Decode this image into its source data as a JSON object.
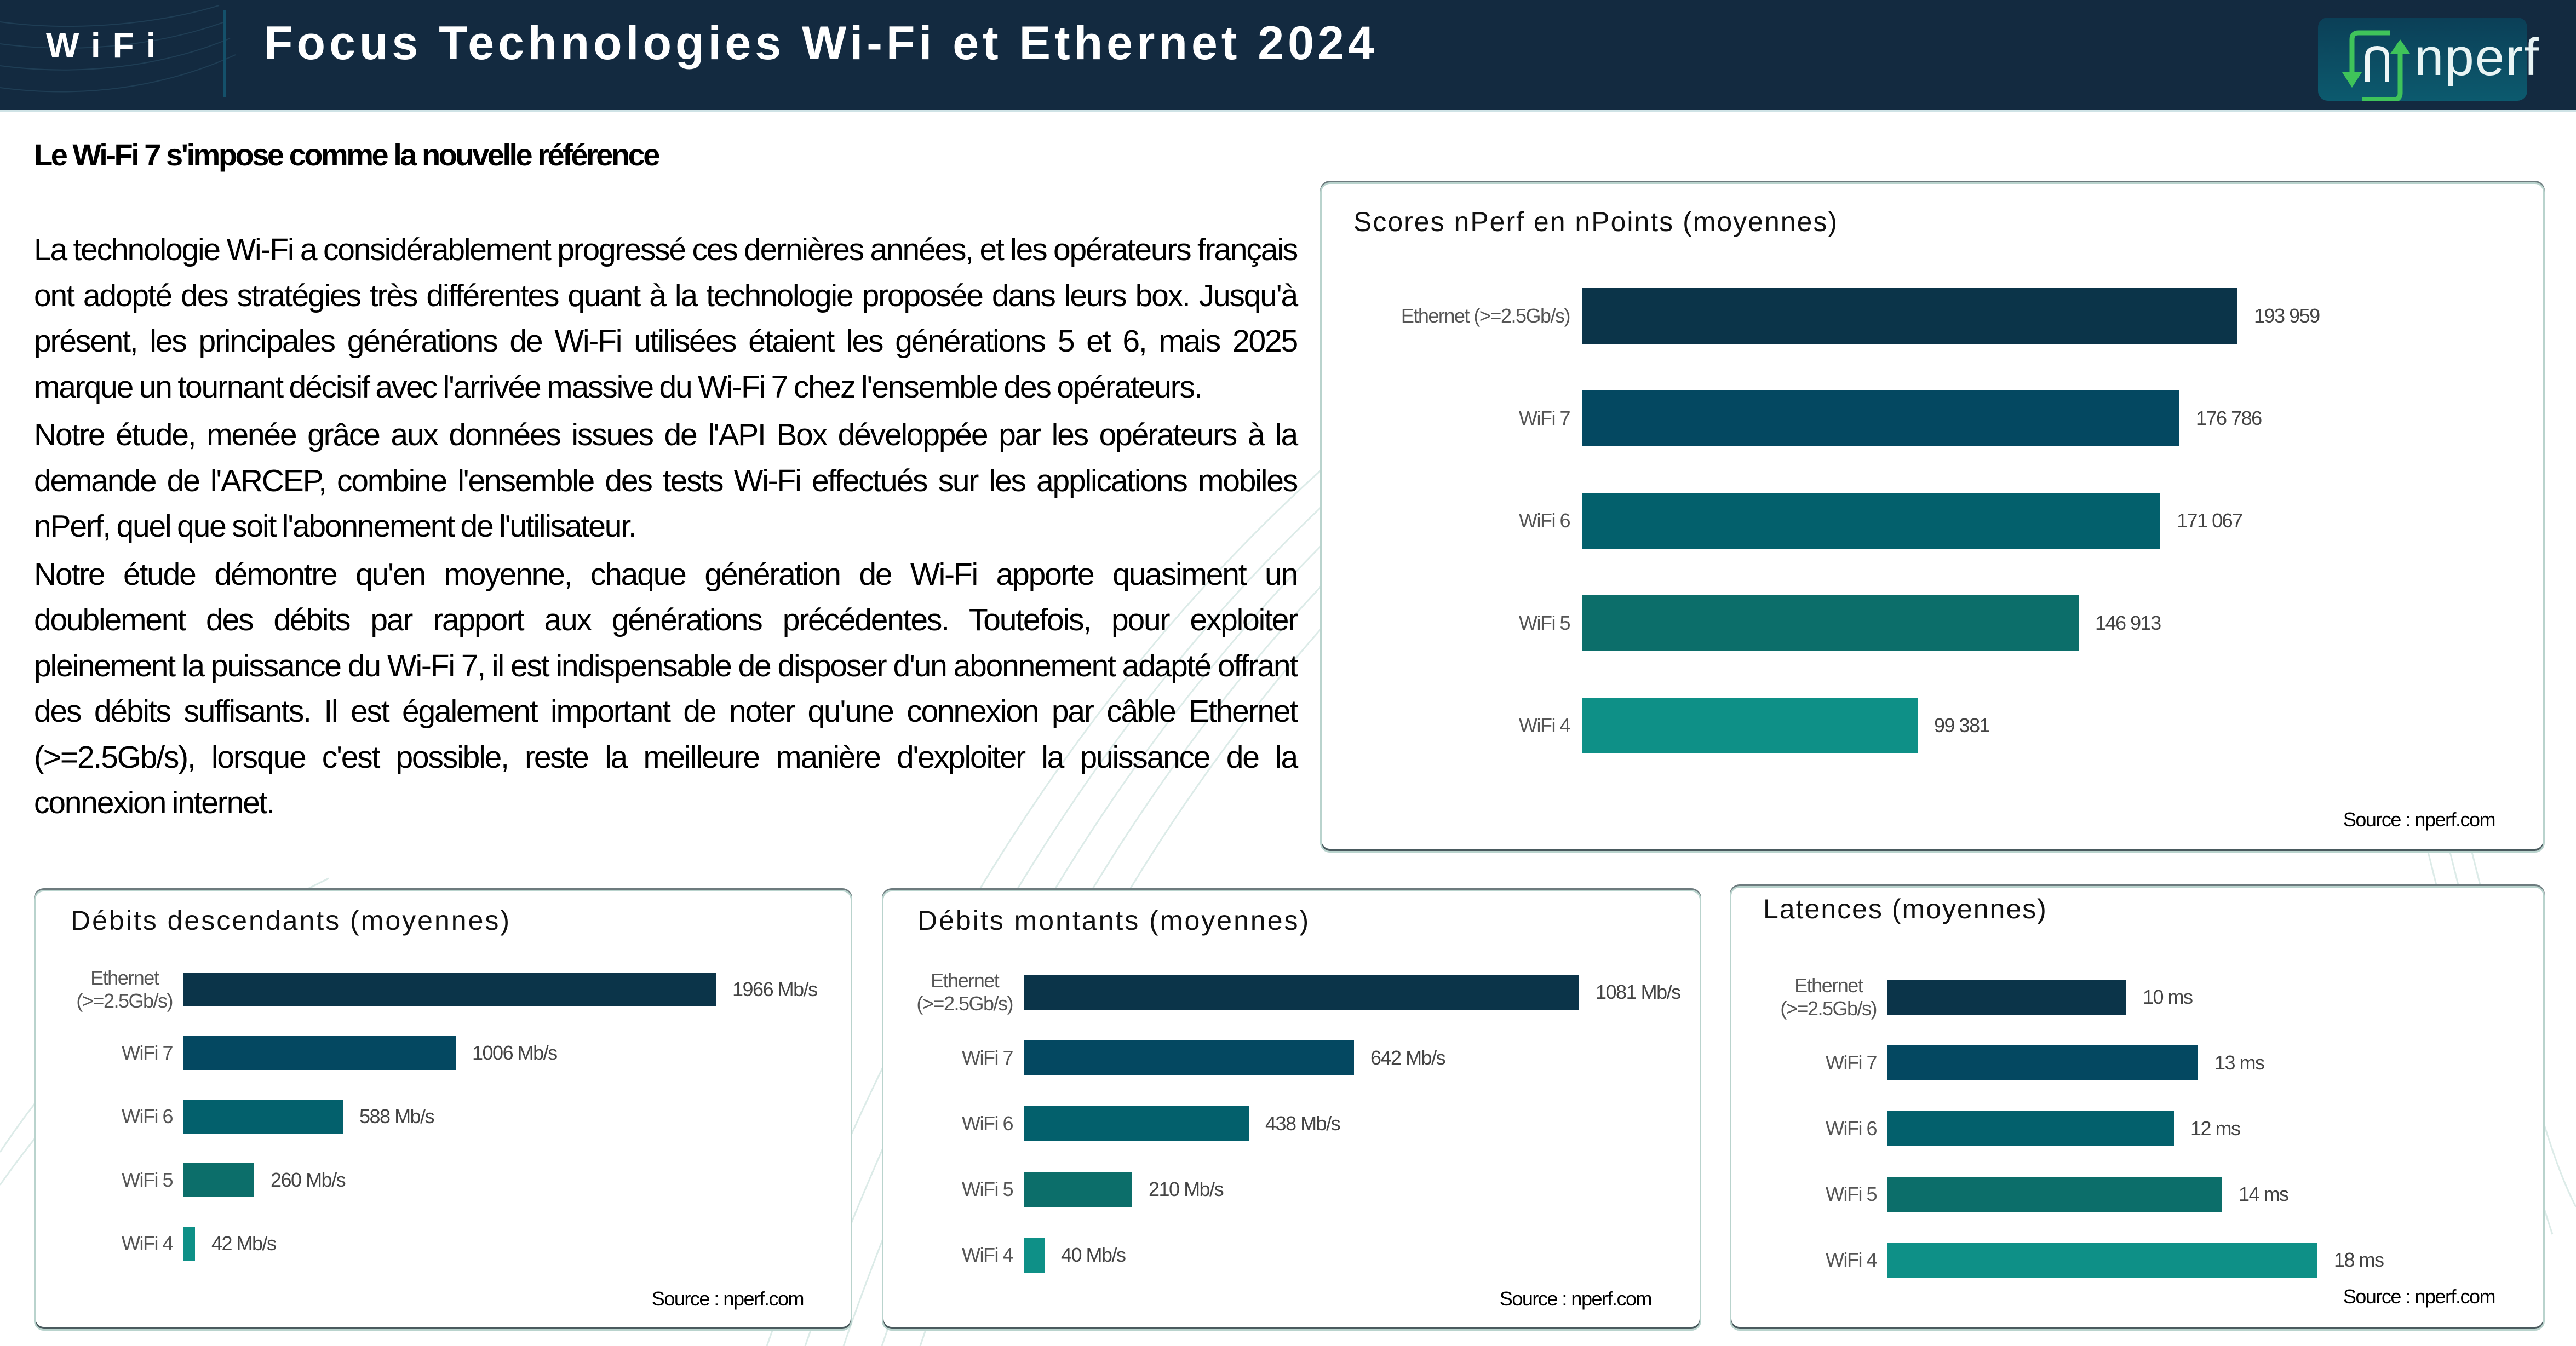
{
  "header": {
    "section": "WiFi",
    "title": "Focus Technologies Wi-Fi et Ethernet 2024",
    "logo_text": "nperf"
  },
  "subtitle": "Le Wi-Fi 7 s'impose comme la nouvelle référence",
  "paragraphs": [
    "La technologie Wi-Fi a considérablement progressé ces dernières années, et les opérateurs français ont adopté des stratégies très différentes quant à la technologie proposée dans leurs box. Jusqu'à présent, les principales générations de Wi-Fi utilisées étaient les générations 5 et 6, mais 2025 marque un tournant décisif avec l'arrivée massive du Wi-Fi 7 chez l'ensemble des opérateurs.",
    "Notre étude, menée grâce aux données issues de l'API Box développée par les opérateurs à la demande de l'ARCEP, combine l'ensemble des tests Wi-Fi effectués sur les applications mobiles nPerf, quel que soit l'abonnement de l'utilisateur.",
    "Notre étude démontre qu'en moyenne, chaque génération de Wi-Fi apporte quasiment un doublement des débits par rapport aux générations précédentes. Toutefois, pour exploiter pleinement la puissance du Wi-Fi 7, il est indispensable de disposer d'un abonnement adapté offrant des débits suffisants. Il est également important de noter qu'une connexion par câble Ethernet (>=2.5Gb/s), lorsque c'est possible, reste la meilleure manière d'exploiter la puissance de la connexion internet."
  ],
  "colors": {
    "header_bg": "#132a40",
    "series": [
      "#0b3449",
      "#044861",
      "#03606c",
      "#0c6e6a",
      "#0e9087"
    ]
  },
  "chart_data": [
    {
      "id": "scores",
      "type": "bar",
      "orientation": "horizontal",
      "title": "Scores nPerf en nPoints (moyennes)",
      "categories": [
        "Ethernet (>=2.5Gb/s)",
        "WiFi 7",
        "WiFi 6",
        "WiFi 5",
        "WiFi 4"
      ],
      "values": [
        193959,
        176786,
        171067,
        146913,
        99381
      ],
      "labels": [
        "193 959",
        "176 786",
        "171 067",
        "146 913",
        "99 381"
      ],
      "xlim": [
        0,
        193959
      ],
      "source": "Source : nperf.com"
    },
    {
      "id": "download",
      "type": "bar",
      "orientation": "horizontal",
      "title": "Débits descendants (moyennes)",
      "categories": [
        "Ethernet (>=2.5Gb/s)",
        "WiFi 7",
        "WiFi 6",
        "WiFi 5",
        "WiFi 4"
      ],
      "values": [
        1966,
        1006,
        588,
        260,
        42
      ],
      "labels": [
        "1966 Mb/s",
        "1006 Mb/s",
        "588 Mb/s",
        "260 Mb/s",
        "42 Mb/s"
      ],
      "unit": "Mb/s",
      "xlim": [
        0,
        1966
      ],
      "source": "Source : nperf.com"
    },
    {
      "id": "upload",
      "type": "bar",
      "orientation": "horizontal",
      "title": "Débits montants (moyennes)",
      "categories": [
        "Ethernet (>=2.5Gb/s)",
        "WiFi 7",
        "WiFi 6",
        "WiFi 5",
        "WiFi 4"
      ],
      "values": [
        1081,
        642,
        438,
        210,
        40
      ],
      "labels": [
        "1081 Mb/s",
        "642 Mb/s",
        "438 Mb/s",
        "210 Mb/s",
        "40 Mb/s"
      ],
      "unit": "Mb/s",
      "xlim": [
        0,
        1081
      ],
      "source": "Source : nperf.com"
    },
    {
      "id": "latency",
      "type": "bar",
      "orientation": "horizontal",
      "title": "Latences (moyennes)",
      "categories": [
        "Ethernet (>=2.5Gb/s)",
        "WiFi 7",
        "WiFi 6",
        "WiFi 5",
        "WiFi 4"
      ],
      "values": [
        10,
        13,
        12,
        14,
        18
      ],
      "labels": [
        "10 ms",
        "13 ms",
        "12 ms",
        "14 ms",
        "18 ms"
      ],
      "unit": "ms",
      "xlim": [
        0,
        18
      ],
      "source": "Source : nperf.com"
    }
  ]
}
